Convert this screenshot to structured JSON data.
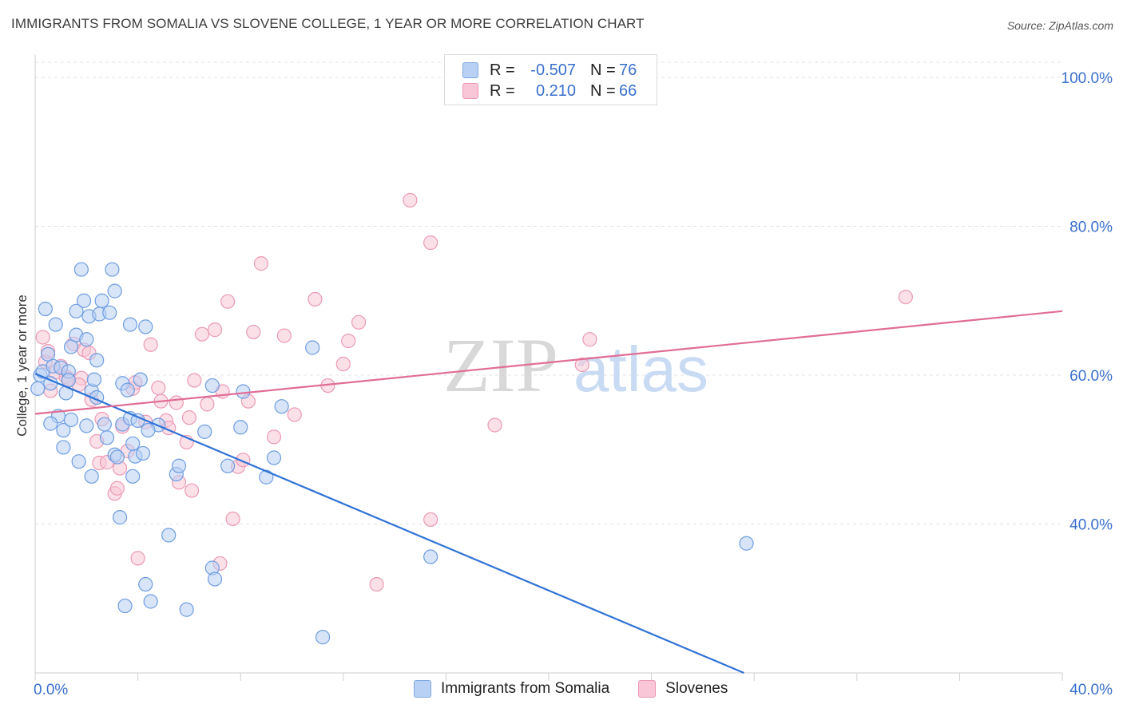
{
  "title": "IMMIGRANTS FROM SOMALIA VS SLOVENE COLLEGE, 1 YEAR OR MORE CORRELATION CHART",
  "source": "Source: ZipAtlas.com",
  "watermark": {
    "zip": "ZIP",
    "atlas": "atlas"
  },
  "colors": {
    "blue_fill": "#b8d0f4",
    "blue_stroke": "#6e9de0",
    "blue_line": "#2f72d6",
    "pink_fill": "#f8c6d6",
    "pink_stroke": "#eb9ab6",
    "pink_line": "#e06d96",
    "axis_text": "#3a70cc",
    "grid": "#e3e3e3"
  },
  "legend": {
    "r_label": "R =",
    "n_label": "N =",
    "series": [
      {
        "r": "-0.507",
        "n": "76"
      },
      {
        "r": "0.210",
        "n": "66"
      }
    ]
  },
  "chart_data": {
    "type": "scatter",
    "xlabel": "",
    "ylabel": "College, 1 year or more",
    "xlim": [
      0,
      40
    ],
    "ylim": [
      20,
      100
    ],
    "x_tick_labels": [
      "0.0%",
      "40.0%"
    ],
    "y_ticks": [
      40,
      60,
      80,
      100
    ],
    "y_tick_labels": [
      "40.0%",
      "60.0%",
      "80.0%",
      "100.0%"
    ],
    "grid": true,
    "series": [
      {
        "name": "Immigrants from Somalia",
        "color": "blue",
        "trend": {
          "x0": 0,
          "y0": 60.2,
          "x1": 27.6,
          "y1": 20.0
        },
        "points": [
          [
            0.1,
            58.2
          ],
          [
            0.2,
            60.0
          ],
          [
            0.3,
            60.5
          ],
          [
            0.4,
            68.9
          ],
          [
            0.5,
            62.8
          ],
          [
            0.6,
            58.9
          ],
          [
            0.7,
            61.2
          ],
          [
            0.8,
            66.8
          ],
          [
            0.9,
            54.5
          ],
          [
            1.0,
            61.0
          ],
          [
            1.1,
            52.6
          ],
          [
            1.1,
            50.3
          ],
          [
            1.2,
            57.6
          ],
          [
            1.3,
            60.5
          ],
          [
            1.4,
            54.0
          ],
          [
            1.4,
            63.8
          ],
          [
            1.6,
            65.4
          ],
          [
            1.6,
            68.6
          ],
          [
            1.7,
            48.4
          ],
          [
            1.8,
            74.2
          ],
          [
            1.9,
            70.0
          ],
          [
            2.0,
            53.2
          ],
          [
            2.0,
            64.8
          ],
          [
            2.1,
            67.9
          ],
          [
            2.2,
            46.4
          ],
          [
            2.2,
            57.9
          ],
          [
            2.3,
            59.4
          ],
          [
            2.4,
            57.0
          ],
          [
            2.4,
            62.0
          ],
          [
            2.5,
            68.2
          ],
          [
            2.6,
            70.0
          ],
          [
            2.7,
            53.4
          ],
          [
            2.8,
            51.6
          ],
          [
            2.9,
            68.4
          ],
          [
            3.0,
            74.2
          ],
          [
            3.1,
            71.3
          ],
          [
            3.1,
            49.3
          ],
          [
            3.2,
            49.0
          ],
          [
            3.3,
            40.9
          ],
          [
            3.4,
            58.9
          ],
          [
            3.4,
            53.4
          ],
          [
            3.5,
            29.0
          ],
          [
            3.6,
            58.0
          ],
          [
            3.7,
            66.8
          ],
          [
            3.7,
            54.2
          ],
          [
            3.8,
            46.4
          ],
          [
            3.9,
            49.1
          ],
          [
            4.0,
            53.9
          ],
          [
            4.1,
            59.4
          ],
          [
            4.2,
            49.5
          ],
          [
            4.3,
            66.5
          ],
          [
            4.3,
            31.9
          ],
          [
            4.5,
            29.6
          ],
          [
            4.8,
            53.3
          ],
          [
            5.2,
            38.5
          ],
          [
            5.5,
            46.7
          ],
          [
            5.6,
            47.8
          ],
          [
            5.9,
            28.5
          ],
          [
            6.9,
            58.6
          ],
          [
            6.9,
            34.1
          ],
          [
            7.0,
            32.6
          ],
          [
            7.5,
            47.8
          ],
          [
            8.0,
            53.0
          ],
          [
            8.1,
            57.8
          ],
          [
            9.0,
            46.3
          ],
          [
            9.3,
            48.9
          ],
          [
            10.8,
            63.7
          ],
          [
            11.2,
            24.8
          ],
          [
            15.4,
            35.6
          ],
          [
            27.7,
            37.4
          ],
          [
            3.8,
            50.8
          ],
          [
            1.3,
            59.3
          ],
          [
            0.6,
            53.5
          ],
          [
            4.4,
            52.6
          ],
          [
            9.6,
            55.8
          ],
          [
            6.6,
            52.4
          ]
        ]
      },
      {
        "name": "Slovenes",
        "color": "pink",
        "trend": {
          "x0": 0,
          "y0": 54.8,
          "x1": 40,
          "y1": 68.6
        },
        "points": [
          [
            0.3,
            65.1
          ],
          [
            0.4,
            61.8
          ],
          [
            0.5,
            63.2
          ],
          [
            0.6,
            57.9
          ],
          [
            0.8,
            60.4
          ],
          [
            1.0,
            61.2
          ],
          [
            1.2,
            59.8
          ],
          [
            1.3,
            59.5
          ],
          [
            1.5,
            64.2
          ],
          [
            1.8,
            59.6
          ],
          [
            1.9,
            63.4
          ],
          [
            2.2,
            56.7
          ],
          [
            2.4,
            51.1
          ],
          [
            2.5,
            48.2
          ],
          [
            2.6,
            54.1
          ],
          [
            2.8,
            48.3
          ],
          [
            3.1,
            44.1
          ],
          [
            3.2,
            44.8
          ],
          [
            3.3,
            47.5
          ],
          [
            3.4,
            53.1
          ],
          [
            3.6,
            49.8
          ],
          [
            3.8,
            58.2
          ],
          [
            3.9,
            59.0
          ],
          [
            4.0,
            35.4
          ],
          [
            4.3,
            53.7
          ],
          [
            4.5,
            64.1
          ],
          [
            4.8,
            58.3
          ],
          [
            4.9,
            56.5
          ],
          [
            5.1,
            53.9
          ],
          [
            5.2,
            52.9
          ],
          [
            5.5,
            56.3
          ],
          [
            5.6,
            45.6
          ],
          [
            5.9,
            51.0
          ],
          [
            6.0,
            54.3
          ],
          [
            6.1,
            44.5
          ],
          [
            6.5,
            65.5
          ],
          [
            6.7,
            56.1
          ],
          [
            7.0,
            66.1
          ],
          [
            7.2,
            34.7
          ],
          [
            7.5,
            69.9
          ],
          [
            7.7,
            40.7
          ],
          [
            7.9,
            47.7
          ],
          [
            8.1,
            48.6
          ],
          [
            8.3,
            56.5
          ],
          [
            8.5,
            65.8
          ],
          [
            8.8,
            75.0
          ],
          [
            9.3,
            51.7
          ],
          [
            9.7,
            65.3
          ],
          [
            10.1,
            54.7
          ],
          [
            10.9,
            70.2
          ],
          [
            11.4,
            58.6
          ],
          [
            12.0,
            61.5
          ],
          [
            12.2,
            64.6
          ],
          [
            12.6,
            67.1
          ],
          [
            13.3,
            31.9
          ],
          [
            14.6,
            83.5
          ],
          [
            15.4,
            40.6
          ],
          [
            15.4,
            77.8
          ],
          [
            17.9,
            53.3
          ],
          [
            21.3,
            61.4
          ],
          [
            21.6,
            64.8
          ],
          [
            33.9,
            70.5
          ],
          [
            1.7,
            58.7
          ],
          [
            2.1,
            63.0
          ],
          [
            6.2,
            59.3
          ],
          [
            7.3,
            57.8
          ]
        ]
      }
    ]
  },
  "bottom_legend": [
    {
      "label": "Immigrants from Somalia"
    },
    {
      "label": "Slovenes"
    }
  ]
}
